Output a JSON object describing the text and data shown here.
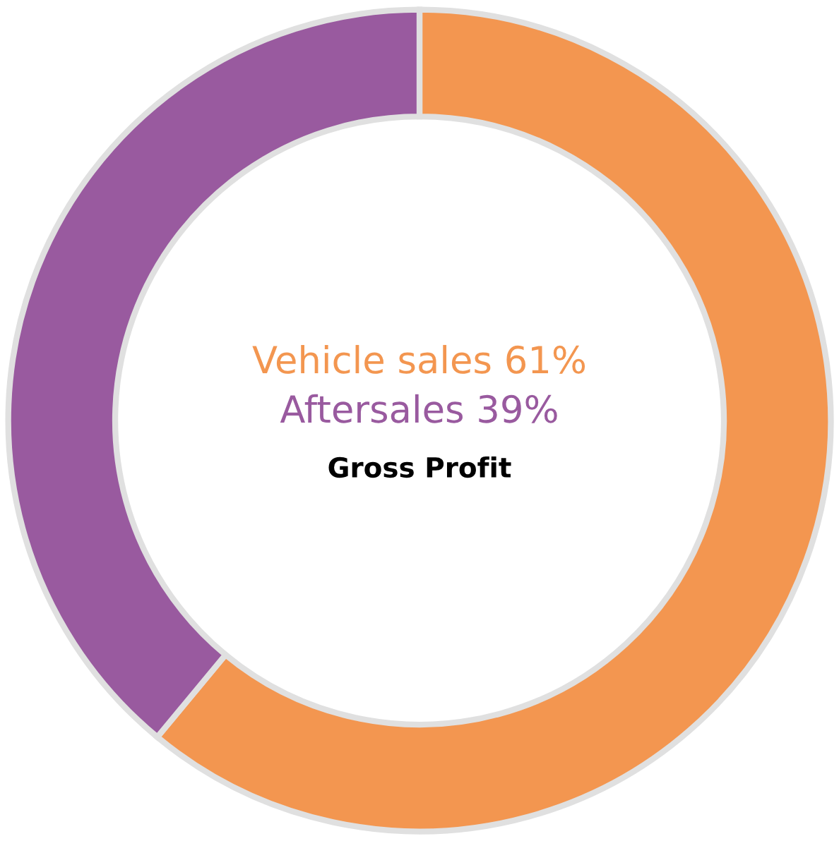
{
  "chart_data": {
    "type": "donut",
    "title": "Gross Profit",
    "categories": [
      "Vehicle sales",
      "Aftersales"
    ],
    "values": [
      61,
      39
    ],
    "value_labels": [
      "61%",
      "39%"
    ],
    "colors": [
      "#f39650",
      "#995a9f"
    ]
  }
}
